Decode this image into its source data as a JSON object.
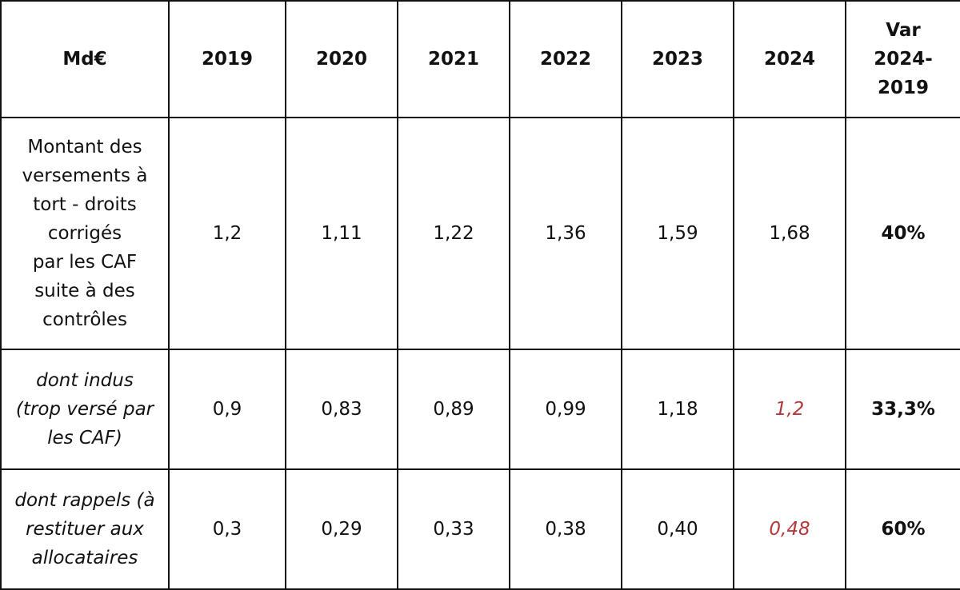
{
  "table": {
    "headers": [
      "Md€",
      "2019",
      "2020",
      "2021",
      "2022",
      "2023",
      "2024",
      "Var\n2024-\n2019"
    ],
    "rows": [
      {
        "label": "Montant des\nversements à\ntort - droits\ncorrigés\npar les CAF\nsuite à des\ncontrôles",
        "values": [
          "1,2",
          "1,11",
          "1,22",
          "1,36",
          "1,59",
          "1,68"
        ],
        "variation": "40%"
      },
      {
        "label": "dont indus\n(trop versé par\nles CAF)",
        "values": [
          "0,9",
          "0,83",
          "0,89",
          "0,99",
          "1,18",
          "1,2"
        ],
        "variation": "33,3%"
      },
      {
        "label": "dont rappels (à\nrestituer aux\nallocataires",
        "values": [
          "0,3",
          "0,29",
          "0,33",
          "0,38",
          "0,40",
          "0,48"
        ],
        "variation": "60%"
      }
    ]
  },
  "colors": {
    "text": "#111111",
    "highlight_red": "#b5373a",
    "border": "#111111"
  }
}
